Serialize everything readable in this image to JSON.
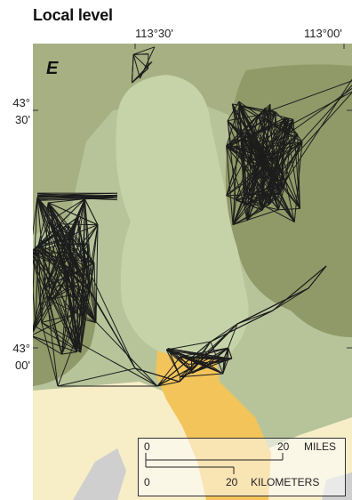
{
  "title": "Local level",
  "panel_label": "E",
  "longitude_labels": [
    "113°30'",
    "113°00'"
  ],
  "latitude_labels": [
    {
      "deg": "43°",
      "min": "30'"
    },
    {
      "deg": "43°",
      "min": "00'"
    }
  ],
  "scale_bar": {
    "miles_zero": "0",
    "miles_value": "20",
    "miles_unit": "MILES",
    "km_zero": "0",
    "km_value": "20",
    "km_unit": "KILOMETERS"
  },
  "colors": {
    "olive_dark": "#8f9a68",
    "olive_mid": "#a6b082",
    "olive_light": "#b7c49a",
    "pale_green": "#c6d3a9",
    "cream": "#f7eec7",
    "orange": "#f2c45a",
    "gray": "#cfcfcf",
    "line": "#1c1c1c"
  }
}
